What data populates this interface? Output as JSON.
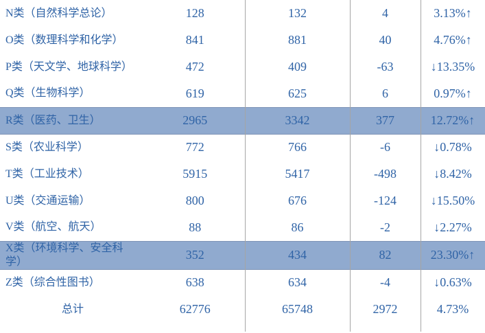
{
  "colors": {
    "text_blue": "#2f63a6",
    "highlight_background": "#90aacf",
    "highlight_border": "#7e94b6",
    "grid_line": "#a5a5a5",
    "page_background": "#ffffff"
  },
  "icons": {
    "up_arrow": "↑",
    "down_arrow": "↓"
  },
  "table": {
    "rows": [
      {
        "category": "N类（自然科学总论）",
        "value1": "128",
        "value2": "132",
        "change": "4",
        "change_pct": "3.13%↑",
        "highlighted": false,
        "is_total": false
      },
      {
        "category": "O类（数理科学和化学）",
        "value1": "841",
        "value2": "881",
        "change": "40",
        "change_pct": "4.76%↑",
        "highlighted": false,
        "is_total": false
      },
      {
        "category": "P类（天文学、地球科学）",
        "value1": "472",
        "value2": "409",
        "change": "-63",
        "change_pct": "↓13.35%",
        "highlighted": false,
        "is_total": false
      },
      {
        "category": "Q类（生物科学）",
        "value1": "619",
        "value2": "625",
        "change": "6",
        "change_pct": "0.97%↑",
        "highlighted": false,
        "is_total": false
      },
      {
        "category": "R类（医药、卫生）",
        "value1": "2965",
        "value2": "3342",
        "change": "377",
        "change_pct": "12.72%↑",
        "highlighted": true,
        "is_total": false
      },
      {
        "category": "S类（农业科学）",
        "value1": "772",
        "value2": "766",
        "change": "-6",
        "change_pct": "↓0.78%",
        "highlighted": false,
        "is_total": false
      },
      {
        "category": "T类（工业技术）",
        "value1": "5915",
        "value2": "5417",
        "change": "-498",
        "change_pct": "↓8.42%",
        "highlighted": false,
        "is_total": false
      },
      {
        "category": "U类（交通运输）",
        "value1": "800",
        "value2": "676",
        "change": "-124",
        "change_pct": "↓15.50%",
        "highlighted": false,
        "is_total": false
      },
      {
        "category": "V类（航空、航天）",
        "value1": "88",
        "value2": "86",
        "change": "-2",
        "change_pct": "↓2.27%",
        "highlighted": false,
        "is_total": false
      },
      {
        "category": "X类（环境科学、安全科学）",
        "value1": "352",
        "value2": "434",
        "change": "82",
        "change_pct": "23.30%↑",
        "highlighted": true,
        "is_total": false
      },
      {
        "category": "Z类（综合性图书）",
        "value1": "638",
        "value2": "634",
        "change": "-4",
        "change_pct": "↓0.63%",
        "highlighted": false,
        "is_total": false
      },
      {
        "category": "总计",
        "value1": "62776",
        "value2": "65748",
        "change": "2972",
        "change_pct": "4.73%",
        "highlighted": false,
        "is_total": true
      }
    ]
  }
}
